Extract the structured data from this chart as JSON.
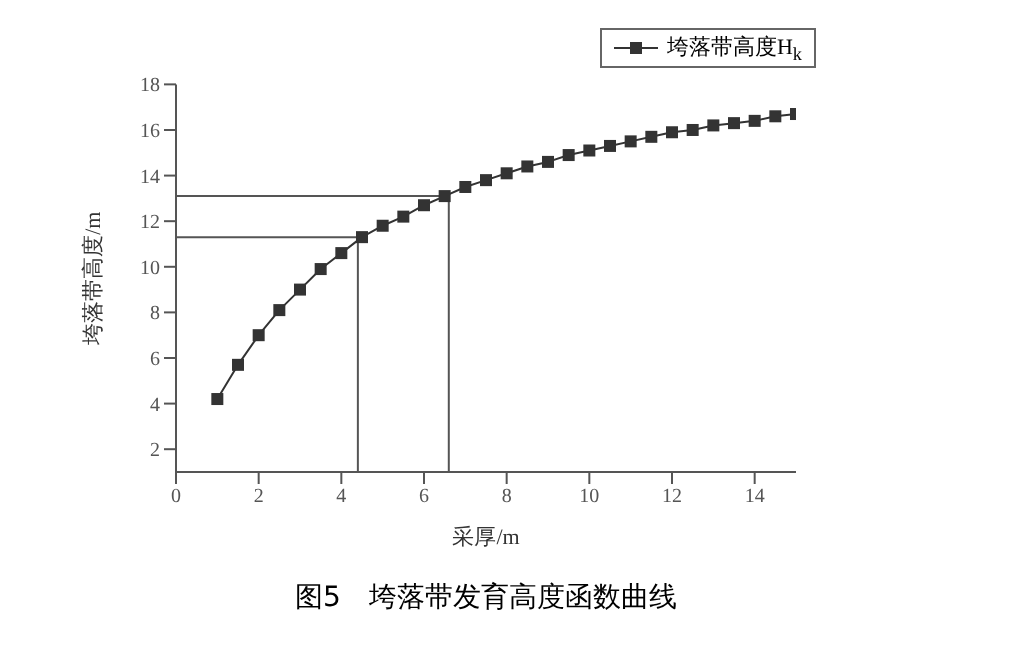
{
  "chart_data": {
    "type": "line",
    "xlabel": "采厚/m",
    "ylabel": "垮落带高度/m",
    "annotations": [
      "图5　垮落带发育高度函数曲线"
    ],
    "x": [
      1,
      1.5,
      2,
      2.5,
      3,
      3.5,
      4,
      4.5,
      5,
      5.5,
      6,
      6.5,
      7,
      7.5,
      8,
      8.5,
      9,
      9.5,
      10,
      10.5,
      11,
      11.5,
      12,
      12.5,
      13,
      13.5,
      14,
      14.5,
      15
    ],
    "series": [
      {
        "name": "垮落带高度H$_{k}$",
        "color": "#333333",
        "values": [
          4.2,
          5.7,
          7.0,
          8.1,
          9.0,
          9.9,
          10.6,
          11.3,
          11.8,
          12.2,
          12.7,
          13.1,
          13.5,
          13.8,
          14.1,
          14.4,
          14.6,
          14.9,
          15.1,
          15.3,
          15.5,
          15.7,
          15.9,
          16.0,
          16.2,
          16.3,
          16.4,
          16.6,
          16.7
        ]
      }
    ],
    "xlim": [
      0,
      15
    ],
    "xticks": [
      0,
      2,
      4,
      6,
      8,
      10,
      12,
      14
    ],
    "ylim": [
      1,
      18
    ],
    "yticks": [
      2,
      4,
      6,
      8,
      10,
      12,
      14,
      16,
      18
    ],
    "ref_lines": [
      {
        "axis": "x",
        "value": 4.4,
        "color": "#555555"
      },
      {
        "axis": "y",
        "value": 11.3,
        "color": "#555555"
      },
      {
        "axis": "x",
        "value": 6.6,
        "color": "#555555"
      },
      {
        "axis": "y",
        "value": 13.1,
        "color": "#555555"
      }
    ],
    "grid": false,
    "legend": "top right",
    "marker": "square",
    "line_style": "solid"
  }
}
